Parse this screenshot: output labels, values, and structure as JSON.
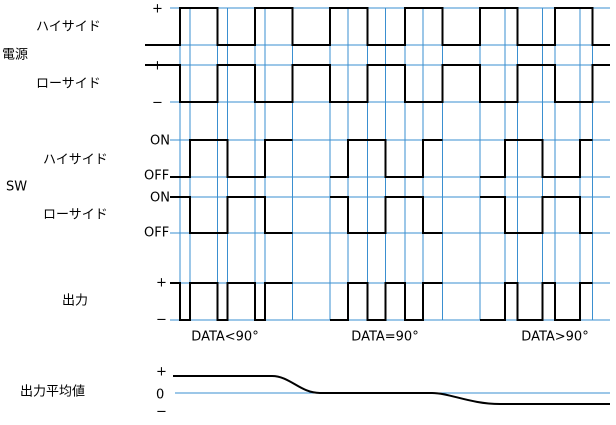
{
  "power": {
    "label": "電源",
    "high_side": "ハイサイド",
    "low_side": "ローサイド",
    "plus": "+",
    "minus": "−"
  },
  "sw": {
    "label": "SW",
    "high_side": "ハイサイド",
    "low_side": "ローサイド",
    "on": "ON",
    "off": "OFF"
  },
  "output": {
    "label": "出力",
    "plus": "+",
    "minus": "−"
  },
  "cases": [
    "DATA<90°",
    "DATA=90°",
    "DATA>90°"
  ],
  "average": {
    "label": "出力平均値",
    "plus": "+",
    "zero": "0",
    "minus": "−"
  }
}
